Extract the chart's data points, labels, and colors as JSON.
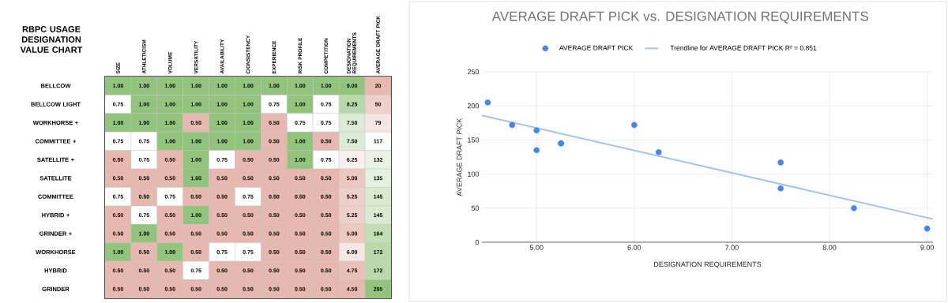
{
  "chart_data": [
    {
      "type": "heatmap",
      "title": "RBPC USAGE DESIGNATION VALUE CHART",
      "categories": [
        "SIZE",
        "ATHLETICISM",
        "VOLUME",
        "VERSATILITY",
        "AVAILABILITY",
        "CIONSISTENCY",
        "EXPERIENCE",
        "RISK PROFILE",
        "COMPETITION",
        "DESIGNATION REQUIREMENTS",
        "AVERAGE DRAFT PICK"
      ],
      "y_categories": [
        "BELLCOW",
        "BELLCOW LIGHT",
        "WORKHORSE +",
        "COMMITTEE +",
        "SATELLITE +",
        "SATELLITE",
        "COMMITTEE",
        "HYBRID +",
        "GRINDER +",
        "WORKHORSE",
        "HYBRID",
        "GRINDER"
      ],
      "cells": [
        [
          1,
          1,
          1,
          1,
          1,
          1,
          1,
          1,
          1,
          9,
          20
        ],
        [
          0.75,
          1,
          1,
          1,
          1,
          1,
          0.75,
          1,
          0.75,
          8.25,
          50
        ],
        [
          1,
          1,
          1,
          0.5,
          1,
          1,
          0.5,
          0.75,
          0.75,
          7.5,
          79
        ],
        [
          0.75,
          0.75,
          1,
          1,
          1,
          1,
          0.5,
          1,
          0.5,
          7.5,
          117
        ],
        [
          0.5,
          0.75,
          0.5,
          1,
          0.75,
          0.5,
          0.5,
          1,
          0.75,
          6.25,
          132
        ],
        [
          0.5,
          0.5,
          0.5,
          1,
          0.5,
          0.5,
          0.5,
          0.5,
          0.5,
          5,
          135
        ],
        [
          0.75,
          0.5,
          0.75,
          0.5,
          0.5,
          0.75,
          0.5,
          0.5,
          0.5,
          5.25,
          145
        ],
        [
          0.5,
          0.75,
          0.5,
          1,
          0.5,
          0.5,
          0.5,
          0.5,
          0.5,
          5.25,
          145
        ],
        [
          0.5,
          1,
          0.5,
          0.5,
          0.5,
          0.5,
          0.5,
          0.5,
          0.5,
          5,
          164
        ],
        [
          1,
          0.5,
          1,
          0.5,
          0.75,
          0.75,
          0.5,
          0.5,
          0.5,
          6,
          172
        ],
        [
          0.5,
          0.5,
          0.5,
          0.75,
          0.5,
          0.5,
          0.5,
          0.5,
          0.5,
          4.75,
          172
        ],
        [
          0.5,
          0.5,
          0.5,
          0.5,
          0.5,
          0.5,
          0.5,
          0.5,
          0.5,
          4.5,
          205
        ]
      ],
      "cell_labels": [
        [
          "1.00",
          "1.00",
          "1.00",
          "1.00",
          "1.00",
          "1.00",
          "1.00",
          "1.00",
          "1.00",
          "9.00",
          "20"
        ],
        [
          "0.75",
          "1.00",
          "1.00",
          "1.00",
          "1.00",
          "1.00",
          "0.75",
          "1.00",
          "0.75",
          "8.25",
          "50"
        ],
        [
          "1.00",
          "1.00",
          "1.00",
          "0.50",
          "1.00",
          "1.00",
          "0.50",
          "0.75",
          "0.75",
          "7.50",
          "79"
        ],
        [
          "0.75",
          "0.75",
          "1.00",
          "1.00",
          "1.00",
          "1.00",
          "0.50",
          "1.00",
          "0.50",
          "7.50",
          "117"
        ],
        [
          "0.50",
          "0.75",
          "0.50",
          "1.00",
          "0.75",
          "0.50",
          "0.50",
          "1.00",
          "0.75",
          "6.25",
          "132"
        ],
        [
          "0.50",
          "0.50",
          "0.50",
          "1.00",
          "0.50",
          "0.50",
          "0.50",
          "0.50",
          "0.50",
          "5.00",
          "135"
        ],
        [
          "0.75",
          "0.50",
          "0.75",
          "0.50",
          "0.50",
          "0.75",
          "0.50",
          "0.50",
          "0.50",
          "5.25",
          "145"
        ],
        [
          "0.50",
          "0.75",
          "0.50",
          "1.00",
          "0.50",
          "0.50",
          "0.50",
          "0.50",
          "0.50",
          "5.25",
          "145"
        ],
        [
          "0.50",
          "1.00",
          "0.50",
          "0.50",
          "0.50",
          "0.50",
          "0.50",
          "0.50",
          "0.50",
          "5.00",
          "164"
        ],
        [
          "1.00",
          "0.50",
          "1.00",
          "0.50",
          "0.75",
          "0.75",
          "0.50",
          "0.50",
          "0.50",
          "6.00",
          "172"
        ],
        [
          "0.50",
          "0.50",
          "0.50",
          "0.75",
          "0.50",
          "0.50",
          "0.50",
          "0.50",
          "0.50",
          "4.75",
          "172"
        ],
        [
          "0.50",
          "0.50",
          "0.50",
          "0.50",
          "0.50",
          "0.50",
          "0.50",
          "0.50",
          "0.50",
          "4.50",
          "205"
        ]
      ]
    },
    {
      "type": "scatter",
      "title": "AVERAGE DRAFT PICK vs. DESIGNATION REQUIREMENTS",
      "xlabel": "DESIGNATION REQUIREMENTS",
      "ylabel": "AVERAGE DRAFT PICK",
      "x": [
        9,
        8.25,
        7.5,
        7.5,
        6.25,
        5,
        5.25,
        5.25,
        5,
        6,
        4.75,
        4.5
      ],
      "series": [
        {
          "name": "AVERAGE DRAFT PICK",
          "color": "#4285f4",
          "marker": "circle",
          "values": [
            20,
            50,
            79,
            117,
            132,
            135,
            145,
            145,
            164,
            172,
            172,
            205
          ]
        },
        {
          "name": "Trendline for AVERAGE DRAFT PICK R² = 0.851",
          "type": "line",
          "marker": "none",
          "color": "#a4c2f4",
          "x": [
            4.44,
            9.06
          ],
          "values": [
            186,
            34
          ]
        }
      ],
      "xlim": [
        4.44,
        9.06
      ],
      "ylim": [
        0,
        250
      ],
      "xticks": [
        {
          "value": 5,
          "label": "5.00"
        },
        {
          "value": 6,
          "label": "6.00"
        },
        {
          "value": 7,
          "label": "7.00"
        },
        {
          "value": 8,
          "label": "8.00"
        },
        {
          "value": 9,
          "label": "9.00"
        }
      ],
      "yticks": [
        0,
        50,
        100,
        150,
        200,
        250
      ],
      "grid": true,
      "legend": "top"
    }
  ]
}
